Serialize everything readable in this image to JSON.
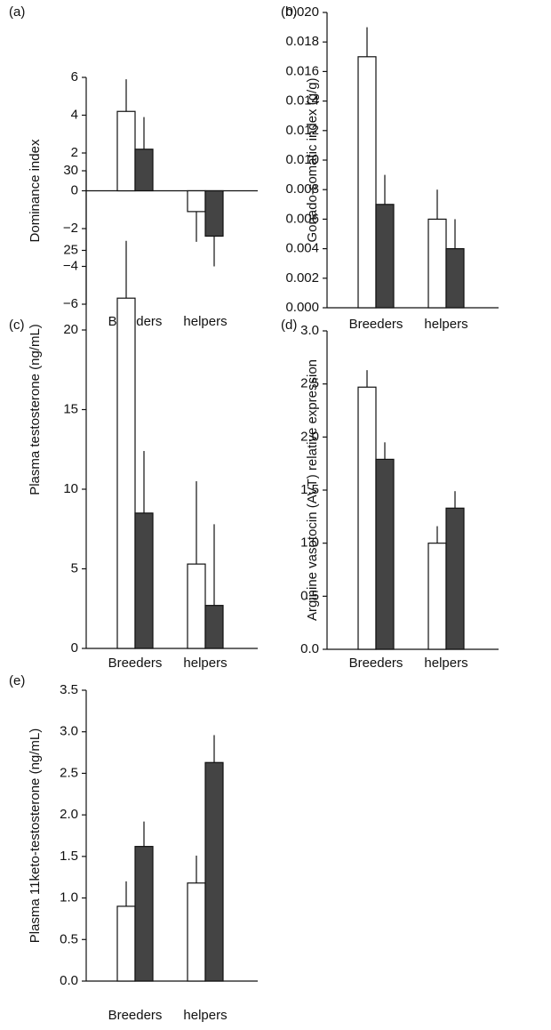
{
  "chart_data": [
    {
      "type": "bar",
      "label": "(a)",
      "y_label": "Dominance index",
      "categories": [
        "Breeders",
        "helpers"
      ],
      "series": [
        {
          "color": "#ffffff",
          "values": [
            4.2,
            -1.1
          ],
          "errors": [
            1.7,
            1.6
          ]
        },
        {
          "color": "#444444",
          "values": [
            2.2,
            -2.4
          ],
          "errors": [
            1.7,
            1.6
          ]
        }
      ],
      "ylim": [
        -6,
        6
      ],
      "yticks": [
        {
          "value": -6,
          "label": "−6"
        },
        {
          "value": -4,
          "label": "−4"
        },
        {
          "value": -2,
          "label": "−2"
        },
        0,
        2,
        4,
        6
      ]
    },
    {
      "type": "bar",
      "label": "(b)",
      "y_label": "Gonado-somatic index (g/g)",
      "categories": [
        "Breeders",
        "helpers"
      ],
      "series": [
        {
          "color": "#ffffff",
          "values": [
            0.017,
            0.006
          ],
          "errors": [
            0.002,
            0.002
          ]
        },
        {
          "color": "#444444",
          "values": [
            0.007,
            0.004
          ],
          "errors": [
            0.002,
            0.002
          ]
        }
      ],
      "ylim": [
        0,
        0.02
      ],
      "yticks": [
        {
          "value": 0,
          "label": "0.000"
        },
        {
          "value": 0.002,
          "label": "0.002"
        },
        {
          "value": 0.004,
          "label": "0.004"
        },
        {
          "value": 0.006,
          "label": "0.006"
        },
        {
          "value": 0.008,
          "label": "0.008"
        },
        {
          "value": 0.01,
          "label": "0.010"
        },
        {
          "value": 0.012,
          "label": "0.012"
        },
        {
          "value": 0.014,
          "label": "0.014"
        },
        {
          "value": 0.016,
          "label": "0.016"
        },
        {
          "value": 0.018,
          "label": "0.018"
        },
        {
          "value": 0.02,
          "label": "0.020"
        }
      ]
    },
    {
      "type": "bar",
      "label": "(c)",
      "y_label": "Plasma testosterone (ng/mL)",
      "categories": [
        "Breeders",
        "helpers"
      ],
      "series": [
        {
          "color": "#ffffff",
          "values": [
            22,
            5.3
          ],
          "errors": [
            3.6,
            5.2
          ]
        },
        {
          "color": "#444444",
          "values": [
            8.5,
            2.7
          ],
          "errors": [
            3.9,
            5.1
          ]
        }
      ],
      "ylim": [
        0,
        30
      ],
      "yticks": [
        0,
        5,
        10,
        15,
        20,
        25,
        30
      ]
    },
    {
      "type": "bar",
      "label": "(d)",
      "y_label": "Arginine vasotocin (AVT) relative expression",
      "categories": [
        "Breeders",
        "helpers"
      ],
      "series": [
        {
          "color": "#ffffff",
          "values": [
            2.47,
            1.0
          ],
          "errors": [
            0.16,
            0.16
          ]
        },
        {
          "color": "#444444",
          "values": [
            1.79,
            1.33
          ],
          "errors": [
            0.16,
            0.16
          ]
        }
      ],
      "ylim": [
        0,
        3
      ],
      "yticks": [
        {
          "value": 0,
          "label": "0.0"
        },
        {
          "value": 0.5,
          "label": "0.5"
        },
        {
          "value": 1,
          "label": "1.0"
        },
        {
          "value": 1.5,
          "label": "1.5"
        },
        {
          "value": 2,
          "label": "2.0"
        },
        {
          "value": 2.5,
          "label": "2.5"
        },
        {
          "value": 3,
          "label": "3.0"
        }
      ]
    },
    {
      "type": "bar",
      "label": "(e)",
      "y_label": "Plasma 11keto-testosterone (ng/mL)",
      "categories": [
        "Breeders",
        "helpers"
      ],
      "series": [
        {
          "color": "#ffffff",
          "values": [
            0.9,
            1.18
          ],
          "errors": [
            0.3,
            0.33
          ]
        },
        {
          "color": "#444444",
          "values": [
            1.62,
            2.63
          ],
          "errors": [
            0.3,
            0.33
          ]
        }
      ],
      "ylim": [
        0,
        3.5
      ],
      "yticks": [
        {
          "value": 0,
          "label": "0.0"
        },
        {
          "value": 0.5,
          "label": "0.5"
        },
        {
          "value": 1,
          "label": "1.0"
        },
        {
          "value": 1.5,
          "label": "1.5"
        },
        {
          "value": 2,
          "label": "2.0"
        },
        {
          "value": 2.5,
          "label": "2.5"
        },
        {
          "value": 3,
          "label": "3.0"
        },
        {
          "value": 3.5,
          "label": "3.5"
        }
      ]
    }
  ]
}
